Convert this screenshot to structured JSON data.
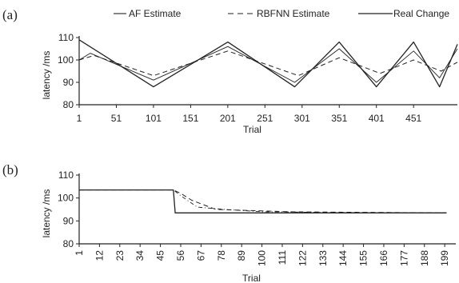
{
  "legend": {
    "items": [
      {
        "label": "AF Estimate",
        "dash": "14,0",
        "style": "short-solid"
      },
      {
        "label": "RBFNN Estimate",
        "dash": "7,5",
        "style": "dashed"
      },
      {
        "label": "Real Change",
        "dash": "",
        "style": "solid"
      }
    ]
  },
  "chart_data": [
    {
      "panel": "(a)",
      "type": "line",
      "xlabel": "Trial",
      "ylabel": "latency /ms",
      "xlim": [
        1,
        510
      ],
      "ylim": [
        80,
        110
      ],
      "xticks": [
        1,
        51,
        101,
        151,
        201,
        251,
        301,
        351,
        401,
        451
      ],
      "yticks": [
        80,
        90,
        100,
        110
      ],
      "grid": false,
      "series": [
        {
          "name": "AF Estimate",
          "line": "solid-thin",
          "x": [
            1,
            16,
            101,
            201,
            291,
            351,
            401,
            451,
            486,
            510
          ],
          "y": [
            100,
            103,
            91,
            106,
            90,
            105,
            90,
            104,
            92,
            105
          ]
        },
        {
          "name": "RBFNN Estimate",
          "line": "dashed",
          "x": [
            1,
            21,
            101,
            201,
            296,
            351,
            406,
            451,
            488,
            510
          ],
          "y": [
            100,
            102,
            93,
            104,
            93,
            101,
            94,
            100,
            95,
            99
          ]
        },
        {
          "name": "Real Change",
          "line": "solid",
          "x": [
            1,
            101,
            201,
            291,
            351,
            401,
            451,
            486,
            510
          ],
          "y": [
            109,
            88,
            108,
            88,
            108,
            88,
            108,
            88,
            107
          ]
        }
      ]
    },
    {
      "panel": "(b)",
      "type": "line",
      "xlabel": "Trial",
      "ylabel": "latency /ms",
      "xlim": [
        1,
        205
      ],
      "ylim": [
        80,
        110
      ],
      "xticks": [
        1,
        12,
        23,
        34,
        45,
        56,
        67,
        78,
        89,
        100,
        111,
        122,
        133,
        144,
        155,
        166,
        177,
        188,
        199
      ],
      "yticks": [
        80,
        90,
        100,
        110
      ],
      "grid": false,
      "series": [
        {
          "name": "AF Estimate",
          "line": "dash-dot",
          "x": [
            1,
            52,
            56,
            65,
            80,
            100,
            111,
            130,
            150,
            200
          ],
          "y": [
            103.5,
            103.5,
            101,
            96,
            95,
            94,
            94,
            93.7,
            93.6,
            93.5
          ]
        },
        {
          "name": "RBFNN Estimate",
          "line": "dashed",
          "x": [
            1,
            52,
            56,
            62,
            75,
            95,
            115,
            140,
            200
          ],
          "y": [
            103.5,
            103.5,
            102,
            99,
            95,
            94.5,
            94,
            93.8,
            93.5
          ]
        },
        {
          "name": "Real Change",
          "line": "solid",
          "x": [
            1,
            52,
            53,
            200
          ],
          "y": [
            103.5,
            103.5,
            93.5,
            93.5
          ]
        }
      ]
    }
  ]
}
